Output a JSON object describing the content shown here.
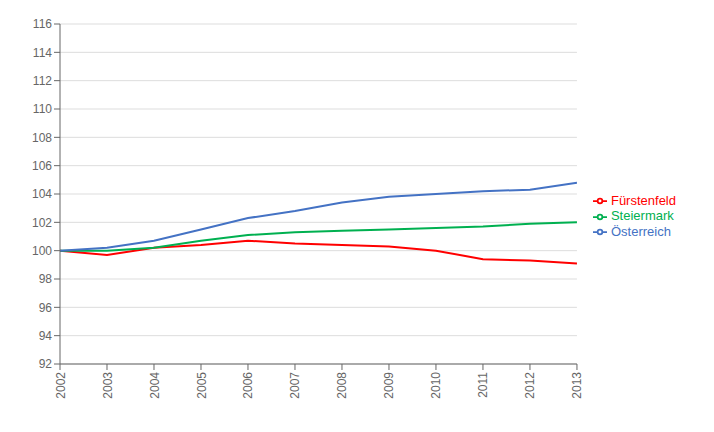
{
  "chart_data": {
    "type": "line",
    "x": [
      2002,
      2003,
      2004,
      2005,
      2006,
      2007,
      2008,
      2009,
      2010,
      2011,
      2012,
      2013
    ],
    "series": [
      {
        "name": "Fürstenfeld",
        "color": "#ff0000",
        "values": [
          100.0,
          99.7,
          100.2,
          100.4,
          100.7,
          100.5,
          100.4,
          100.3,
          100.0,
          99.4,
          99.3,
          99.1
        ]
      },
      {
        "name": "Steiermark",
        "color": "#00b050",
        "values": [
          100.0,
          100.0,
          100.2,
          100.7,
          101.1,
          101.3,
          101.4,
          101.5,
          101.6,
          101.7,
          101.9,
          102.0
        ]
      },
      {
        "name": "Österreich",
        "color": "#4472c4",
        "values": [
          100.0,
          100.2,
          100.7,
          101.5,
          102.3,
          102.8,
          103.4,
          103.8,
          104.0,
          104.2,
          104.3,
          104.8
        ]
      }
    ],
    "xlim": [
      2002,
      2013
    ],
    "xticks": [
      2002,
      2003,
      2004,
      2005,
      2006,
      2007,
      2008,
      2009,
      2010,
      2011,
      2012,
      2013
    ],
    "ylim": [
      92,
      116
    ],
    "yticks": [
      92,
      94,
      96,
      98,
      100,
      102,
      104,
      106,
      108,
      110,
      112,
      114,
      116
    ],
    "grid": true,
    "legend": "right"
  }
}
